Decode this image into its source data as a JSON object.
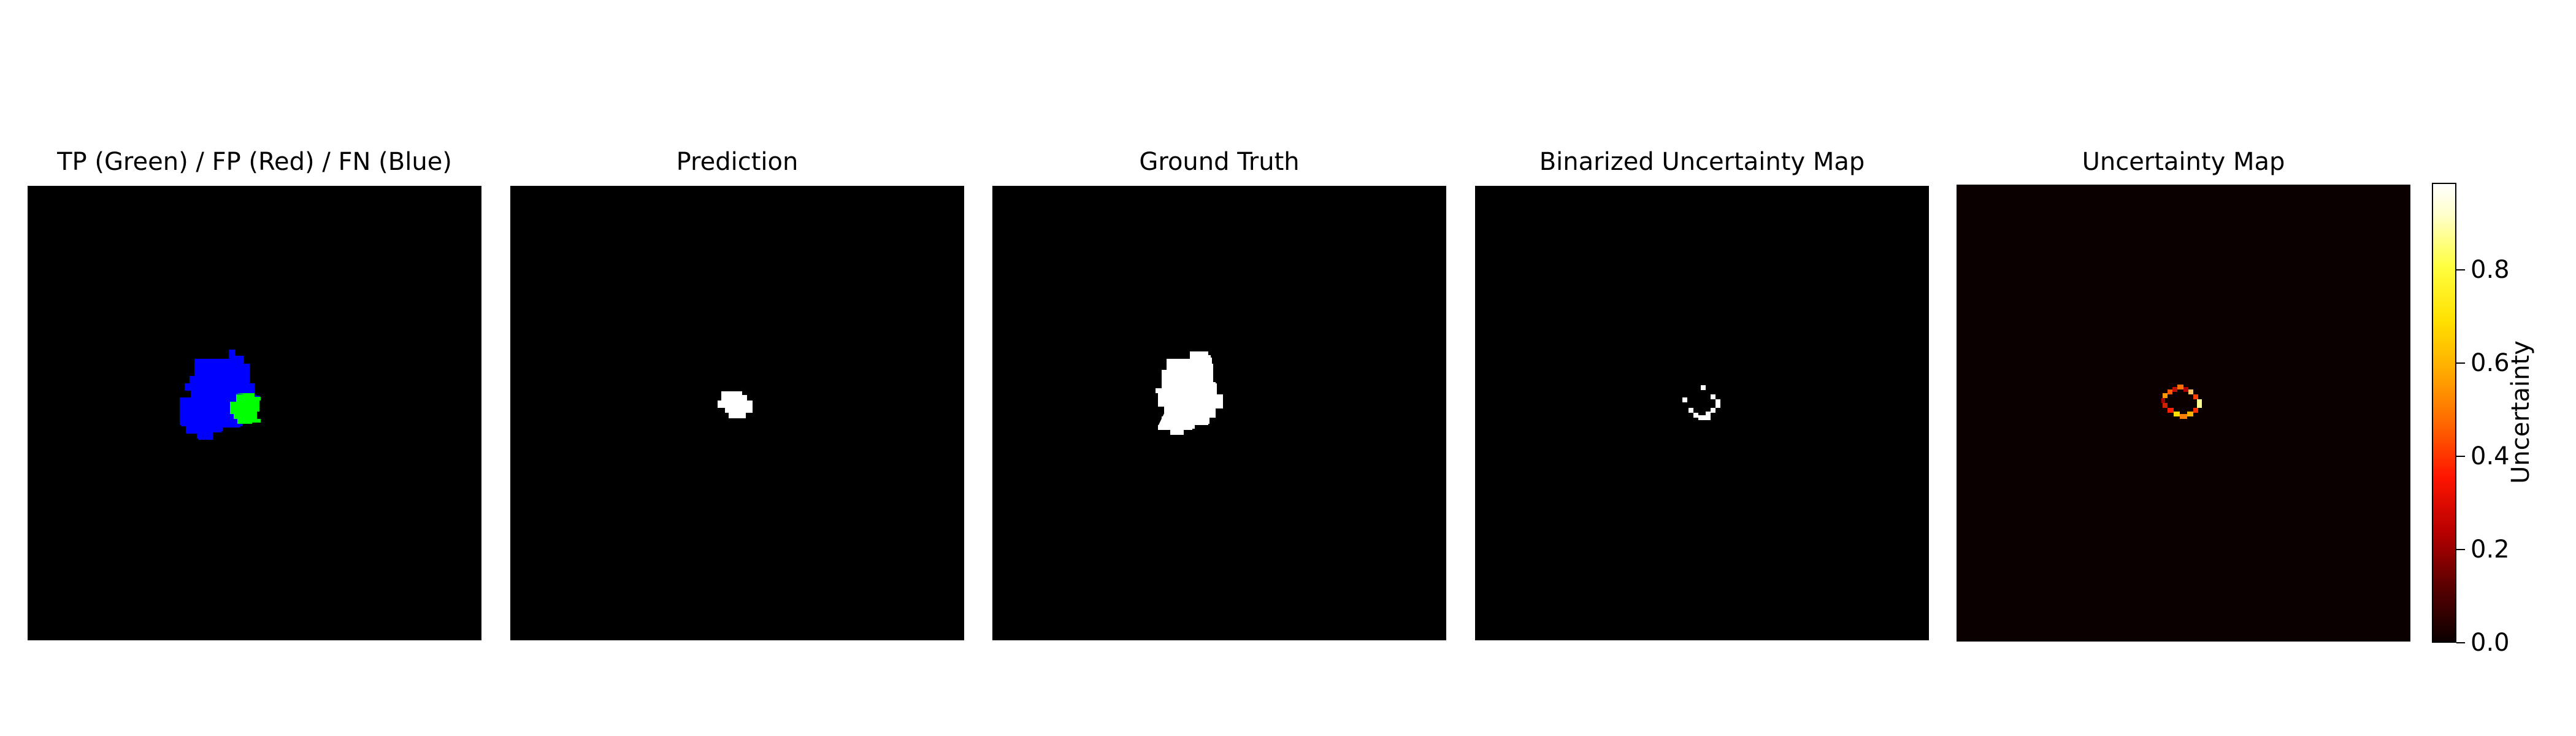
{
  "panels": [
    {
      "title": "TP (Green) / FP (Red) / FN (Blue)"
    },
    {
      "title": "Prediction"
    },
    {
      "title": "Ground Truth"
    },
    {
      "title": "Binarized Uncertainty Map"
    },
    {
      "title": "Uncertainty Map"
    }
  ],
  "colorbar": {
    "label": "Uncertainty",
    "ticks": [
      "0.0",
      "0.2",
      "0.4",
      "0.6",
      "0.8"
    ],
    "colormap": "hot"
  },
  "colors": {
    "true_positive": "#00ff00",
    "false_negative": "#0000ff",
    "mask": "#ffffff",
    "background": "#000000"
  }
}
